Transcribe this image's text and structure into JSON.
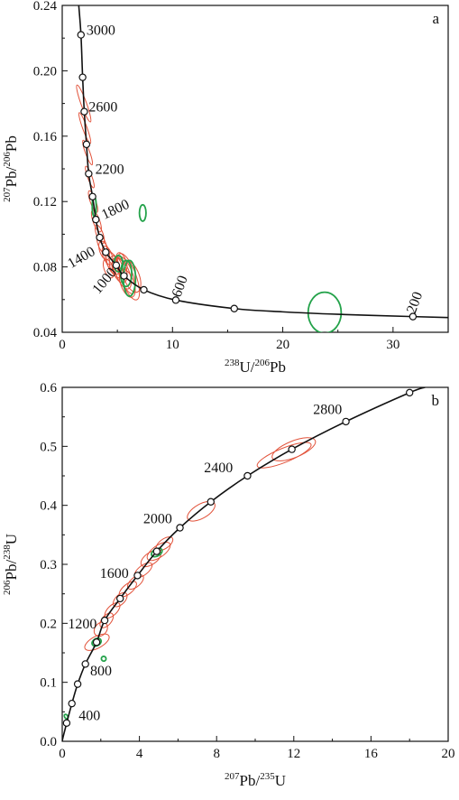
{
  "chart_data": [
    {
      "type": "scatter",
      "panel_label": "a",
      "xlabel": {
        "pre": "238",
        "main": "U/",
        "pre2": "206",
        "main2": "Pb"
      },
      "ylabel": {
        "pre": "207",
        "main": "Pb/",
        "pre2": "206",
        "main2": "Pb"
      },
      "xlim": [
        0,
        35
      ],
      "ylim": [
        0.04,
        0.24
      ],
      "xticks": [
        "0",
        "10",
        "20",
        "30"
      ],
      "yticks": [
        "0.04",
        "0.08",
        "0.12",
        "0.16",
        "0.20",
        "0.24"
      ],
      "concordia": [
        [
          1.5,
          0.24
        ],
        [
          1.7,
          0.222
        ],
        [
          1.85,
          0.196
        ],
        [
          2.0,
          0.175
        ],
        [
          2.2,
          0.155
        ],
        [
          2.4,
          0.137
        ],
        [
          2.75,
          0.123
        ],
        [
          3.05,
          0.109
        ],
        [
          3.4,
          0.098
        ],
        [
          3.95,
          0.089
        ],
        [
          4.9,
          0.081
        ],
        [
          5.6,
          0.0745
        ],
        [
          7.4,
          0.066
        ],
        [
          10.3,
          0.0597
        ],
        [
          15.6,
          0.0545
        ],
        [
          20.0,
          0.0525
        ],
        [
          25.0,
          0.051
        ],
        [
          31.8,
          0.0496
        ],
        [
          35.0,
          0.049
        ]
      ],
      "age_markers": [
        [
          1.7,
          0.222
        ],
        [
          1.85,
          0.196
        ],
        [
          2.0,
          0.175
        ],
        [
          2.2,
          0.155
        ],
        [
          2.4,
          0.137
        ],
        [
          2.75,
          0.123
        ],
        [
          3.05,
          0.109
        ],
        [
          3.4,
          0.098
        ],
        [
          3.95,
          0.089
        ],
        [
          4.9,
          0.081
        ],
        [
          5.6,
          0.0745
        ],
        [
          7.4,
          0.066
        ],
        [
          10.3,
          0.0597
        ],
        [
          15.6,
          0.0545
        ],
        [
          31.8,
          0.0496
        ]
      ],
      "age_labels": [
        {
          "text": "3000",
          "x": 2.2,
          "y": 0.222,
          "rotate": 0
        },
        {
          "text": "2600",
          "x": 2.4,
          "y": 0.175,
          "rotate": 0
        },
        {
          "text": "2200",
          "x": 3.0,
          "y": 0.137,
          "rotate": 0
        },
        {
          "text": "1800",
          "x": 3.8,
          "y": 0.109,
          "rotate": -25
        },
        {
          "text": "1400",
          "x": 0.8,
          "y": 0.079,
          "rotate": -30
        },
        {
          "text": "1000",
          "x": 3.3,
          "y": 0.063,
          "rotate": -50
        },
        {
          "text": "600",
          "x": 10.7,
          "y": 0.061,
          "rotate": -70
        },
        {
          "text": "200",
          "x": 32.0,
          "y": 0.051,
          "rotate": -70
        }
      ],
      "ellipses": [
        {
          "color": "red",
          "cx": 1.95,
          "cy": 0.18,
          "rx": 0.25,
          "ry": 0.012,
          "rot": -20
        },
        {
          "color": "red",
          "cx": 2.05,
          "cy": 0.165,
          "rx": 0.2,
          "ry": 0.01,
          "rot": -20
        },
        {
          "color": "red",
          "cx": 2.3,
          "cy": 0.15,
          "rx": 0.2,
          "ry": 0.008,
          "rot": -20
        },
        {
          "color": "red",
          "cx": 2.5,
          "cy": 0.135,
          "rx": 0.2,
          "ry": 0.007,
          "rot": -20
        },
        {
          "color": "red",
          "cx": 2.8,
          "cy": 0.12,
          "rx": 0.25,
          "ry": 0.007,
          "rot": -20
        },
        {
          "color": "red",
          "cx": 3.1,
          "cy": 0.108,
          "rx": 0.3,
          "ry": 0.007,
          "rot": -20
        },
        {
          "color": "red",
          "cx": 3.4,
          "cy": 0.1,
          "rx": 0.3,
          "ry": 0.006,
          "rot": -20
        },
        {
          "color": "red",
          "cx": 3.6,
          "cy": 0.094,
          "rx": 0.35,
          "ry": 0.006,
          "rot": -20
        },
        {
          "color": "red",
          "cx": 3.8,
          "cy": 0.09,
          "rx": 0.4,
          "ry": 0.006,
          "rot": -20
        },
        {
          "color": "red",
          "cx": 4.1,
          "cy": 0.087,
          "rx": 0.4,
          "ry": 0.006,
          "rot": -20
        },
        {
          "color": "red",
          "cx": 4.4,
          "cy": 0.084,
          "rx": 0.45,
          "ry": 0.006,
          "rot": -20
        },
        {
          "color": "red",
          "cx": 4.6,
          "cy": 0.082,
          "rx": 0.5,
          "ry": 0.007,
          "rot": -20
        },
        {
          "color": "red",
          "cx": 4.9,
          "cy": 0.08,
          "rx": 0.55,
          "ry": 0.007,
          "rot": -20
        },
        {
          "color": "red",
          "cx": 5.2,
          "cy": 0.078,
          "rx": 0.6,
          "ry": 0.008,
          "rot": -20
        },
        {
          "color": "red",
          "cx": 5.5,
          "cy": 0.076,
          "rx": 0.6,
          "ry": 0.01,
          "rot": -20
        },
        {
          "color": "red",
          "cx": 5.8,
          "cy": 0.075,
          "rx": 0.6,
          "ry": 0.012,
          "rot": -20
        },
        {
          "color": "red",
          "cx": 6.0,
          "cy": 0.074,
          "rx": 0.7,
          "ry": 0.015,
          "rot": -20
        },
        {
          "color": "red",
          "cx": 6.3,
          "cy": 0.074,
          "rx": 0.7,
          "ry": 0.01,
          "rot": -20
        },
        {
          "color": "red",
          "cx": 5.4,
          "cy": 0.083,
          "rx": 0.4,
          "ry": 0.006,
          "rot": -20
        },
        {
          "color": "red",
          "cx": 4.2,
          "cy": 0.079,
          "rx": 0.4,
          "ry": 0.006,
          "rot": -20
        },
        {
          "color": "red",
          "cx": 5.9,
          "cy": 0.07,
          "rx": 0.6,
          "ry": 0.009,
          "rot": -20
        },
        {
          "color": "green",
          "cx": 2.9,
          "cy": 0.117,
          "rx": 0.18,
          "ry": 0.006,
          "rot": 0
        },
        {
          "color": "green",
          "cx": 7.3,
          "cy": 0.113,
          "rx": 0.3,
          "ry": 0.005,
          "rot": 0
        },
        {
          "color": "green",
          "cx": 5.1,
          "cy": 0.082,
          "rx": 0.4,
          "ry": 0.005,
          "rot": 0
        },
        {
          "color": "green",
          "cx": 5.8,
          "cy": 0.076,
          "rx": 0.5,
          "ry": 0.008,
          "rot": 0
        },
        {
          "color": "green",
          "cx": 6.1,
          "cy": 0.073,
          "rx": 0.55,
          "ry": 0.011,
          "rot": 0
        },
        {
          "color": "green",
          "cx": 23.8,
          "cy": 0.052,
          "rx": 1.5,
          "ry": 0.0125,
          "rot": 0
        }
      ]
    },
    {
      "type": "scatter",
      "panel_label": "b",
      "xlabel": {
        "pre": "207",
        "main": "Pb/",
        "pre2": "235",
        "main2": "U"
      },
      "ylabel": {
        "pre": "206",
        "main": "Pb/",
        "pre2": "238",
        "main2": "U"
      },
      "xlim": [
        0,
        20
      ],
      "ylim": [
        0,
        0.6
      ],
      "xticks": [
        "0",
        "4",
        "8",
        "12",
        "16",
        "20"
      ],
      "yticks": [
        "0.0",
        "0.1",
        "0.2",
        "0.3",
        "0.4",
        "0.5",
        "0.6"
      ],
      "concordia": [
        [
          0,
          0
        ],
        [
          0.05,
          0.008
        ],
        [
          0.23,
          0.031
        ],
        [
          0.5,
          0.064
        ],
        [
          0.8,
          0.097
        ],
        [
          1.2,
          0.131
        ],
        [
          1.78,
          0.168
        ],
        [
          2.2,
          0.205
        ],
        [
          3.0,
          0.242
        ],
        [
          3.9,
          0.281
        ],
        [
          4.9,
          0.322
        ],
        [
          6.1,
          0.362
        ],
        [
          7.7,
          0.406
        ],
        [
          9.6,
          0.45
        ],
        [
          11.9,
          0.495
        ],
        [
          14.7,
          0.542
        ],
        [
          18.0,
          0.591
        ],
        [
          18.8,
          0.6
        ]
      ],
      "age_markers": [
        [
          0.23,
          0.031
        ],
        [
          0.5,
          0.064
        ],
        [
          0.8,
          0.097
        ],
        [
          1.2,
          0.131
        ],
        [
          1.78,
          0.168
        ],
        [
          2.2,
          0.205
        ],
        [
          3.0,
          0.242
        ],
        [
          3.9,
          0.281
        ],
        [
          4.9,
          0.322
        ],
        [
          6.1,
          0.362
        ],
        [
          7.7,
          0.406
        ],
        [
          9.6,
          0.45
        ],
        [
          11.9,
          0.495
        ],
        [
          14.7,
          0.542
        ],
        [
          18.0,
          0.591
        ]
      ],
      "age_labels": [
        {
          "text": "400",
          "x": 0.85,
          "y": 0.036,
          "rotate": 0
        },
        {
          "text": "800",
          "x": 1.45,
          "y": 0.112,
          "rotate": 0
        },
        {
          "text": "1200",
          "x": 0.3,
          "y": 0.191,
          "rotate": 0
        },
        {
          "text": "1600",
          "x": 1.95,
          "y": 0.277,
          "rotate": 0
        },
        {
          "text": "2000",
          "x": 4.2,
          "y": 0.37,
          "rotate": 0
        },
        {
          "text": "2400",
          "x": 7.35,
          "y": 0.456,
          "rotate": 0
        },
        {
          "text": "2800",
          "x": 13.0,
          "y": 0.555,
          "rotate": 0
        }
      ],
      "ellipses": [
        {
          "color": "red",
          "cx": 1.8,
          "cy": 0.168,
          "rx": 0.7,
          "ry": 0.01,
          "rot": -28
        },
        {
          "color": "red",
          "cx": 2.0,
          "cy": 0.19,
          "rx": 0.4,
          "ry": 0.01,
          "rot": -50
        },
        {
          "color": "red",
          "cx": 2.3,
          "cy": 0.205,
          "rx": 0.45,
          "ry": 0.008,
          "rot": -50
        },
        {
          "color": "red",
          "cx": 2.6,
          "cy": 0.222,
          "rx": 0.5,
          "ry": 0.008,
          "rot": -45
        },
        {
          "color": "red",
          "cx": 3.0,
          "cy": 0.24,
          "rx": 0.45,
          "ry": 0.008,
          "rot": -45
        },
        {
          "color": "red",
          "cx": 3.4,
          "cy": 0.258,
          "rx": 0.55,
          "ry": 0.008,
          "rot": -40
        },
        {
          "color": "red",
          "cx": 3.8,
          "cy": 0.27,
          "rx": 0.5,
          "ry": 0.008,
          "rot": -40
        },
        {
          "color": "red",
          "cx": 4.2,
          "cy": 0.29,
          "rx": 0.55,
          "ry": 0.008,
          "rot": -38
        },
        {
          "color": "red",
          "cx": 4.6,
          "cy": 0.31,
          "rx": 0.6,
          "ry": 0.01,
          "rot": -35
        },
        {
          "color": "red",
          "cx": 5.0,
          "cy": 0.322,
          "rx": 0.7,
          "ry": 0.01,
          "rot": -35
        },
        {
          "color": "red",
          "cx": 5.3,
          "cy": 0.335,
          "rx": 0.5,
          "ry": 0.008,
          "rot": -35
        },
        {
          "color": "red",
          "cx": 7.2,
          "cy": 0.39,
          "rx": 0.8,
          "ry": 0.012,
          "rot": -30
        },
        {
          "color": "red",
          "cx": 11.5,
          "cy": 0.485,
          "rx": 1.5,
          "ry": 0.012,
          "rot": -22
        },
        {
          "color": "red",
          "cx": 12.0,
          "cy": 0.495,
          "rx": 1.2,
          "ry": 0.014,
          "rot": -22
        },
        {
          "color": "green",
          "cx": 1.78,
          "cy": 0.168,
          "rx": 0.25,
          "ry": 0.006,
          "rot": -30
        },
        {
          "color": "green",
          "cx": 2.15,
          "cy": 0.14,
          "rx": 0.12,
          "ry": 0.004,
          "rot": -30
        },
        {
          "color": "green",
          "cx": 0.2,
          "cy": 0.042,
          "rx": 0.08,
          "ry": 0.004,
          "rot": -30
        },
        {
          "color": "green",
          "cx": 4.9,
          "cy": 0.32,
          "rx": 0.3,
          "ry": 0.006,
          "rot": -30
        }
      ]
    }
  ],
  "colors": {
    "line": "#111111",
    "red": "#e2523a",
    "green": "#23a24a"
  }
}
